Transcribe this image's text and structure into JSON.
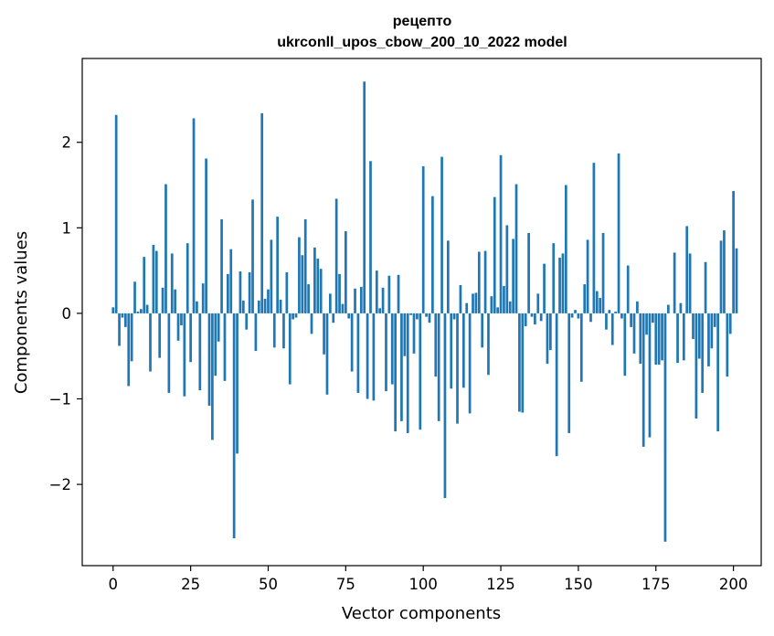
{
  "chart_data": {
    "type": "bar",
    "title_line1": "рецепто",
    "title_line2": "ukrconll_upos_cbow_200_10_2022 model",
    "xlabel": "Vector components",
    "ylabel": "Components values",
    "xlim": [
      -9.95,
      208.95
    ],
    "ylim": [
      -2.95,
      2.98
    ],
    "xticks": [
      0,
      25,
      50,
      75,
      100,
      125,
      150,
      175,
      200
    ],
    "yticks": [
      -2,
      -1,
      0,
      1,
      2
    ],
    "ytick_labels": [
      "−2",
      "−1",
      "0",
      "1",
      "2"
    ],
    "color": "#1f77b4",
    "values": [
      0.07,
      2.32,
      -0.38,
      -0.05,
      -0.16,
      -0.85,
      -0.56,
      0.37,
      0.02,
      0.05,
      0.66,
      0.1,
      -0.68,
      0.8,
      0.73,
      -0.52,
      0.3,
      1.51,
      -0.93,
      0.7,
      0.28,
      -0.32,
      -0.14,
      -0.97,
      0.82,
      -0.57,
      2.28,
      0.14,
      -0.9,
      0.35,
      1.81,
      -1.08,
      -1.48,
      -0.73,
      -0.33,
      1.1,
      -0.79,
      0.46,
      0.75,
      -2.63,
      -1.64,
      0.49,
      0.15,
      -0.19,
      0.48,
      1.33,
      -0.44,
      0.15,
      2.34,
      0.17,
      0.28,
      0.86,
      -0.4,
      1.13,
      0.16,
      -0.41,
      0.48,
      -0.83,
      -0.07,
      -0.05,
      0.89,
      0.68,
      1.1,
      0.34,
      -0.24,
      0.77,
      0.64,
      0.52,
      -0.48,
      -0.95,
      0.23,
      -0.11,
      1.34,
      0.46,
      0.11,
      0.96,
      -0.06,
      -0.68,
      0.29,
      -0.93,
      0.31,
      2.71,
      -1.0,
      1.78,
      -1.02,
      0.5,
      0.06,
      0.3,
      -0.91,
      0.44,
      -0.83,
      -1.38,
      0.45,
      -1.26,
      -0.5,
      -1.4,
      -0.02,
      -0.47,
      -0.07,
      -1.36,
      1.72,
      -0.04,
      -0.11,
      1.37,
      -0.74,
      -1.26,
      1.83,
      -2.16,
      0.85,
      -0.88,
      -0.07,
      -1.29,
      0.33,
      -0.87,
      0.12,
      -1.17,
      0.23,
      0.24,
      0.72,
      -0.4,
      0.73,
      -0.72,
      0.2,
      1.36,
      0.07,
      1.85,
      0.32,
      1.03,
      0.14,
      0.87,
      1.51,
      -1.15,
      -1.16,
      -0.15,
      0.94,
      -0.04,
      -0.13,
      0.23,
      -0.09,
      0.58,
      -0.59,
      -0.43,
      0.82,
      -1.67,
      0.65,
      0.7,
      1.5,
      -1.4,
      -0.05,
      0.04,
      -0.06,
      -0.8,
      0.34,
      0.86,
      -0.1,
      1.76,
      0.26,
      0.18,
      0.94,
      -0.19,
      0.04,
      -0.37,
      0.02,
      1.87,
      -0.06,
      -0.73,
      0.56,
      -0.16,
      -0.47,
      0.14,
      -0.59,
      -1.56,
      -0.25,
      -1.45,
      -0.11,
      -0.6,
      -0.6,
      -0.55,
      -2.67,
      0.1,
      0.0,
      0.71,
      -0.58,
      0.12,
      -0.55,
      1.02,
      0.7,
      -0.3,
      -1.23,
      -0.53,
      -0.93,
      0.6,
      -0.62,
      -0.41,
      -0.16,
      -1.38,
      0.85,
      0.97,
      -0.74,
      -0.24,
      1.43,
      0.76
    ]
  }
}
